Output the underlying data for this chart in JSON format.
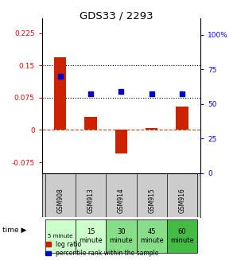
{
  "title": "GDS33 / 2293",
  "samples": [
    "GSM908",
    "GSM913",
    "GSM914",
    "GSM915",
    "GSM916"
  ],
  "time_labels": [
    "5 minute",
    "15\nminute",
    "30\nminute",
    "45\nminute",
    "60\nminute"
  ],
  "time_colors": [
    "#ccffcc",
    "#ccffcc",
    "#66cc66",
    "#66cc66",
    "#33aa33"
  ],
  "log_ratio": [
    0.17,
    0.03,
    -0.055,
    0.005,
    0.055
  ],
  "percentile_rank": [
    0.125,
    0.085,
    0.09,
    0.085,
    0.085
  ],
  "bar_color": "#cc2200",
  "dot_color": "#0000cc",
  "ylim_left": [
    -0.1,
    0.26
  ],
  "ylim_right": [
    0,
    112
  ],
  "yticks_left": [
    -0.075,
    0,
    0.075,
    0.15,
    0.225
  ],
  "yticks_right": [
    0,
    25,
    50,
    75,
    100
  ],
  "ytick_labels_left": [
    "-0.075",
    "0",
    "0.075",
    "0.15",
    "0.225"
  ],
  "ytick_labels_right": [
    "0",
    "25",
    "50",
    "75",
    "100%"
  ],
  "hline_y": [
    0.075,
    0.15
  ],
  "zero_line_y": 0,
  "background_color": "#ffffff",
  "plot_bg": "#ffffff",
  "legend_log": "log ratio",
  "legend_pct": "percentile rank within the sample",
  "sample_bg": "#cccccc"
}
